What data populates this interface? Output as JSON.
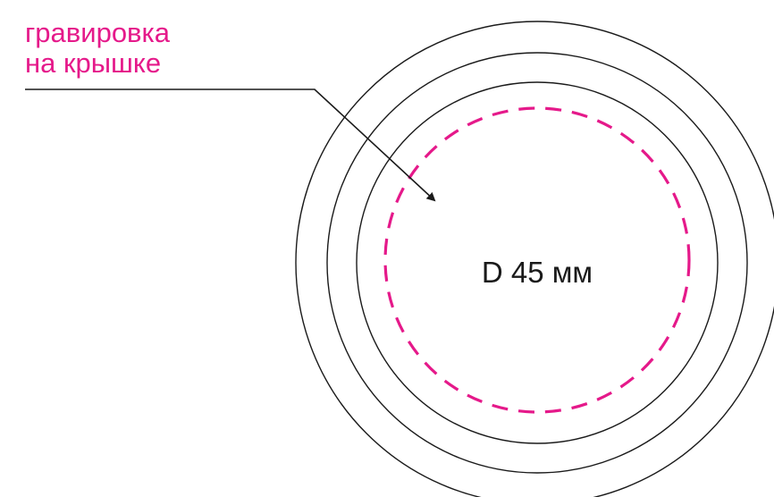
{
  "callout": {
    "line1": "гравировка",
    "line2": "на крышке"
  },
  "dimension": {
    "label": "D 45 мм"
  },
  "colors": {
    "accent": "#e5198a",
    "stroke": "#1a1a1a",
    "text": "#1a1a1a",
    "background": "#ffffff"
  }
}
